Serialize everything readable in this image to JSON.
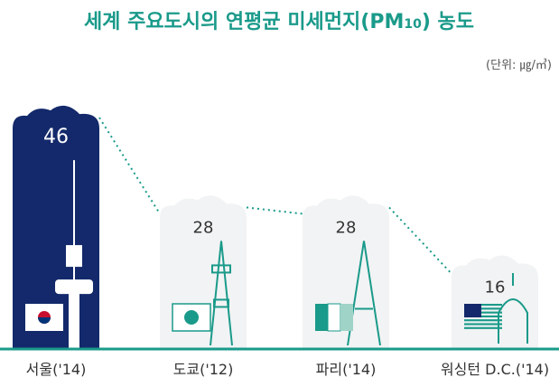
{
  "chart_data": {
    "type": "bar",
    "title": "세계 주요도시의 연평균 미세먼지(PM10) 농도",
    "title_main": "세계 주요도시의 연평균 미세먼지(PM",
    "title_sub": "10",
    "title_tail": ") 농도",
    "unit_label": "(단위: ㎍/㎥)",
    "categories": [
      "서울('14)",
      "도쿄('12)",
      "파리('14)",
      "워싱턴 D.C.('14)"
    ],
    "values": [
      46,
      28,
      28,
      16
    ],
    "value_labels": [
      "46",
      "28",
      "28",
      "16"
    ],
    "ylim": [
      0,
      50
    ],
    "grid": false,
    "highlight_index": 0,
    "landmark_icons": [
      "n-seoul-tower-icon",
      "tokyo-tower-icon",
      "eiffel-tower-icon",
      "us-capitol-icon"
    ],
    "flag_icons": [
      "korea-flag-icon",
      "japan-flag-icon",
      "france-flag-icon",
      "usa-flag-icon"
    ]
  },
  "colors": {
    "title": "#1a9a8a",
    "highlight_bar": "#13296b",
    "cloud_bar": "#f2f3f4",
    "landmark": "#1a9a8a",
    "baseline": "#1a9a8a",
    "connector": "#1a9a8a",
    "value_text_dark": "#333333",
    "value_text_light": "#ffffff",
    "label_text": "#333333",
    "unit_text": "#555555"
  }
}
